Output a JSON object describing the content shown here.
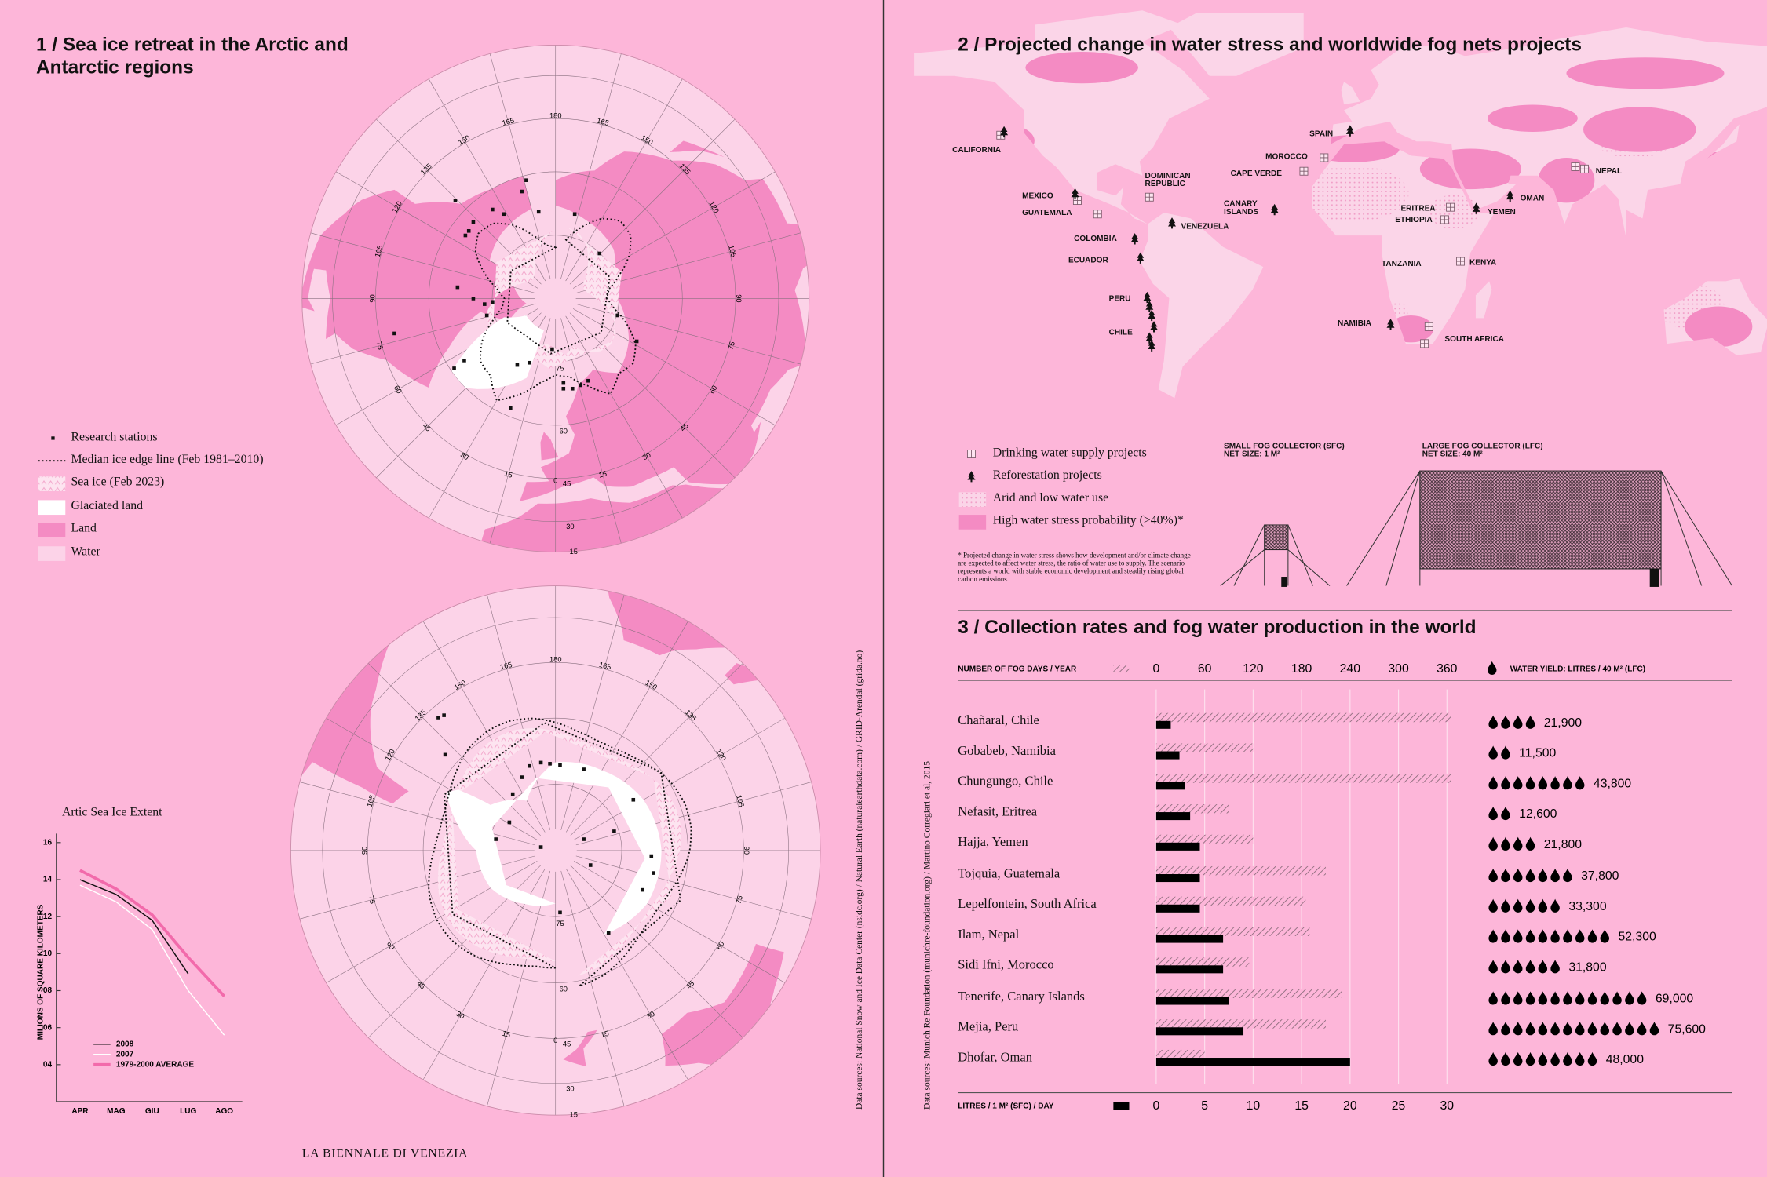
{
  "left": {
    "title": "1 / Sea ice retreat in the Arctic and Antarctic regions",
    "arctic_meridians": [
      180,
      165,
      150,
      135,
      120,
      105,
      90,
      75,
      60,
      45,
      30,
      15,
      0,
      15,
      30,
      45,
      60,
      75,
      90,
      105,
      120,
      135,
      150,
      165
    ],
    "arctic_latitudes": [
      75,
      60,
      45,
      30,
      15
    ],
    "antarctic_meridians": [
      180,
      165,
      150,
      135,
      120,
      105,
      90,
      75,
      60,
      45,
      30,
      15,
      0,
      15,
      30,
      45,
      60,
      75,
      90,
      105,
      120,
      135,
      150,
      165
    ],
    "antarctic_latitudes": [
      75,
      60,
      45,
      30,
      15
    ],
    "legend": [
      "Research stations",
      "Median ice edge line (Feb 1981–2010)",
      "Sea ice (Feb 2023)",
      "Glaciated land",
      "Land",
      "Water"
    ],
    "sources": "Data sources: National Snow and Ice Data Center (nsidc.org) / Natural Earth (naturalearthdata.com) / GRID-Arendal (grida.no)",
    "footer": "LA BIENNALE DI VENEZIA"
  },
  "right": {
    "title": "2 / Projected change in water stress and worldwide fog nets projects",
    "map_labels": [
      "CALIFORNIA",
      "MEXICO",
      "GUATEMALA",
      "DOMINICAN REPUBLIC",
      "COLOMBIA",
      "VENEZUELA",
      "ECUADOR",
      "PERU",
      "CHILE",
      "CANARY ISLANDS",
      "CAPE VERDE",
      "MOROCCO",
      "SPAIN",
      "ERITREA",
      "ETHIOPIA",
      "YEMEN",
      "OMAN",
      "NEPAL",
      "TANZANIA",
      "KENYA",
      "NAMIBIA",
      "SOUTH AFRICA"
    ],
    "legend": [
      "Drinking water supply projects",
      "Reforestation projects",
      "Arid and low water use",
      "High water stress probability (>40%)*"
    ],
    "footnote": "* Projected change in water stress shows how development and/or climate change are expected to affect water stress, the ratio of water use to supply. The scenario represents a world with stable economic development and steadily rising global carbon emissions.",
    "small_collector": {
      "title": "SMALL FOG COLLECTOR (SFC)",
      "size": "NET SIZE: 1 M²"
    },
    "large_collector": {
      "title": "LARGE FOG COLLECTOR (LFC)",
      "size": "NET SIZE: 40 M²"
    },
    "title3": "3 / Collection rates and fog water production in the world",
    "sources": "Data sources: Munich Re Foundation (munichre-foundation.org) / Martino Corregiari et al, 2015"
  },
  "chart_data": [
    {
      "type": "line",
      "title": "Artic Sea Ice Extent",
      "ylabel": "MILIONS OF SQUARE KILOMETERS",
      "categories": [
        "APR",
        "MAG",
        "GIU",
        "LUG",
        "AGO"
      ],
      "ylim": [
        2,
        16
      ],
      "yticks": [
        16,
        14,
        12,
        10,
        {
          "value": 8,
          "label": "08"
        },
        {
          "value": 6,
          "label": "06"
        },
        {
          "value": 4,
          "label": "04"
        }
      ],
      "series": [
        {
          "name": "2008",
          "color": "#111111",
          "values": [
            14.0,
            13.2,
            11.8,
            8.9,
            null
          ]
        },
        {
          "name": "2007",
          "color": "#ffffff",
          "values": [
            13.7,
            12.8,
            11.3,
            8.0,
            5.6
          ]
        },
        {
          "name": "1979-2000 AVERAGE",
          "color": "#f26aab",
          "values": [
            14.5,
            13.5,
            12.1,
            9.8,
            7.7
          ]
        }
      ]
    },
    {
      "type": "bar",
      "orientation": "horizontal",
      "categories": [
        "Chañaral, Chile",
        "Gobabeb, Namibia",
        "Chungungo, Chile",
        "Nefasit, Eritrea",
        "Hajja, Yemen",
        "Tojquia, Guatemala",
        "Lepelfontein, South Africa",
        "Ilam, Nepal",
        "Sidi Ifni, Morocco",
        "Tenerife, Canary Islands",
        "Mejia, Peru",
        "Dhofar, Oman"
      ],
      "xlim": [
        0,
        30
      ],
      "xticks": [
        0,
        5,
        10,
        15,
        20,
        25,
        30
      ],
      "x2lim": [
        0,
        360
      ],
      "x2ticks": [
        0,
        60,
        120,
        180,
        240,
        300,
        360
      ],
      "series": [
        {
          "name": "NUMBER OF FOG DAYS / YEAR",
          "axis": "x2",
          "values": [
            365,
            120,
            365,
            90,
            120,
            210,
            185,
            190,
            115,
            230,
            210,
            60
          ]
        },
        {
          "name": "LITRES / 1 M² (SFC) / DAY",
          "color": "#000000",
          "values": [
            1.5,
            2.4,
            3.0,
            3.5,
            4.5,
            4.5,
            4.5,
            6.9,
            6.9,
            7.5,
            9.0,
            20
          ]
        },
        {
          "name": "WATER YIELD: LITRES / 40 M² (LFC)",
          "color": "#000000",
          "values": [
            21900,
            11500,
            43800,
            12600,
            21800,
            37800,
            33300,
            52300,
            31800,
            69000,
            75600,
            48000
          ],
          "value_labels": [
            "21,900",
            "11,500",
            "43,800",
            "12,600",
            "21,800",
            "37,800",
            "33,300",
            "52,300",
            "31,800",
            "69,000",
            "75,600",
            "48,000"
          ]
        }
      ]
    }
  ]
}
